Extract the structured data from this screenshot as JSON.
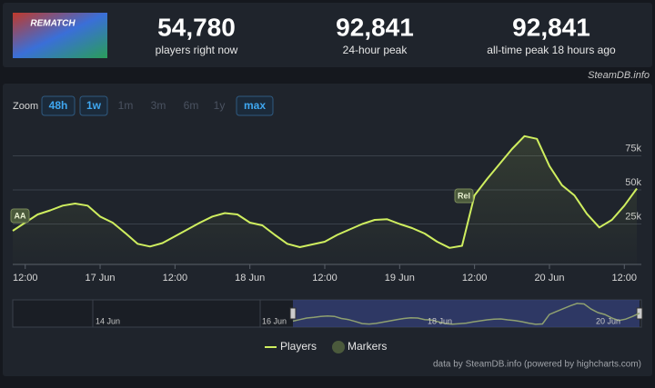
{
  "header": {
    "game_logo": "REMATCH",
    "stats": [
      {
        "value": "54,780",
        "label": "players right now"
      },
      {
        "value": "92,841",
        "label": "24-hour peak"
      },
      {
        "value": "92,841",
        "label": "all-time peak 18 hours ago"
      }
    ],
    "watermark": "SteamDB.info"
  },
  "zoom": {
    "label": "Zoom",
    "buttons": [
      "48h",
      "1w",
      "1m",
      "3m",
      "6m",
      "1y",
      "max"
    ],
    "active": [
      true,
      true,
      false,
      false,
      false,
      false,
      true
    ]
  },
  "chart_data": {
    "type": "line",
    "categories": [
      null,
      "12:00",
      null,
      null,
      null,
      null,
      null,
      "17 Jun",
      null,
      null,
      null,
      null,
      null,
      "12:00",
      null,
      null,
      null,
      null,
      null,
      "18 Jun",
      null,
      null,
      null,
      null,
      null,
      "12:00",
      null,
      null,
      null,
      null,
      null,
      "19 Jun",
      null,
      null,
      null,
      null,
      null,
      "12:00",
      null,
      null,
      null,
      null,
      null,
      "20 Jun",
      null,
      null,
      null,
      null,
      null,
      "12:00",
      null
    ],
    "series": [
      {
        "name": "Players",
        "color": "#cfee5f",
        "values": [
          20000,
          26000,
          32000,
          35000,
          38500,
          40000,
          38500,
          30500,
          26000,
          18500,
          10500,
          8500,
          11000,
          16000,
          21000,
          26000,
          30500,
          33000,
          32000,
          26000,
          24000,
          17000,
          10500,
          8000,
          10000,
          12000,
          17000,
          21000,
          25000,
          28000,
          28500,
          25000,
          22000,
          18000,
          12000,
          7500,
          9000,
          46000,
          58000,
          69000,
          80000,
          89500,
          87500,
          67500,
          53500,
          46000,
          32500,
          22500,
          28000,
          38500,
          51000
        ]
      }
    ],
    "markers": {
      "name": "Markers",
      "color": "#4b5a3c",
      "items": [
        "AA",
        "Rel"
      ]
    },
    "ylim": [
      0,
      100000
    ],
    "yticks": [
      {
        "value": 25000,
        "label": "25k"
      },
      {
        "value": 50000,
        "label": "50k"
      },
      {
        "value": 75000,
        "label": "75k"
      }
    ],
    "grid": true,
    "navigator": {
      "labels": [
        "14 Jun",
        "16 Jun",
        "18 Jun",
        "20 Jun"
      ]
    },
    "credits": "data by SteamDB.info (powered by highcharts.com)"
  }
}
